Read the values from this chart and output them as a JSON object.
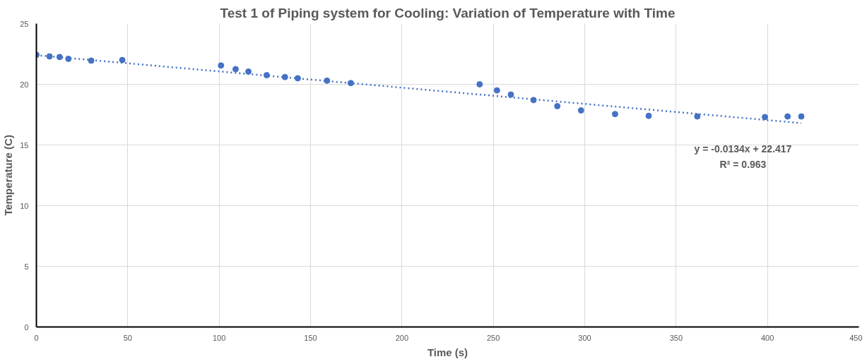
{
  "chart_data": {
    "type": "scatter",
    "title": "Test 1 of Piping system for Cooling: Variation of Temperature with Time",
    "xlabel": "Time (s)",
    "ylabel": "Temperature (C)",
    "xlim": [
      0,
      450
    ],
    "xticks": [
      0,
      50,
      100,
      150,
      200,
      250,
      300,
      350,
      400,
      450
    ],
    "ylim": [
      0,
      25
    ],
    "yticks": [
      0,
      5,
      10,
      15,
      20,
      25
    ],
    "grid": true,
    "series": [
      {
        "color": "#4472c4",
        "marker": "circle",
        "x": [
          0,
          7.2,
          12.7,
          17.5,
          30,
          47,
          101,
          109,
          116,
          126,
          136,
          143,
          159,
          172,
          242.5,
          252,
          259.6,
          272,
          285,
          298,
          316.6,
          335,
          361.6,
          398.6,
          411,
          418.5
        ],
        "values": [
          22.43,
          22.3,
          22.25,
          22.1,
          21.95,
          22.0,
          21.55,
          21.25,
          21.05,
          20.75,
          20.6,
          20.5,
          20.3,
          20.1,
          20.0,
          19.5,
          19.15,
          18.7,
          18.2,
          17.85,
          17.55,
          17.4,
          17.35,
          17.3,
          17.35,
          17.35
        ]
      },
      {
        "type": "line",
        "color": "#4472c4",
        "line_style": "dotted",
        "x": [
          0,
          418.5
        ],
        "values": [
          22.4,
          16.8
        ]
      }
    ],
    "annotations": [
      "y = -0.0134x + 22.417",
      "R² = 0.963"
    ]
  }
}
